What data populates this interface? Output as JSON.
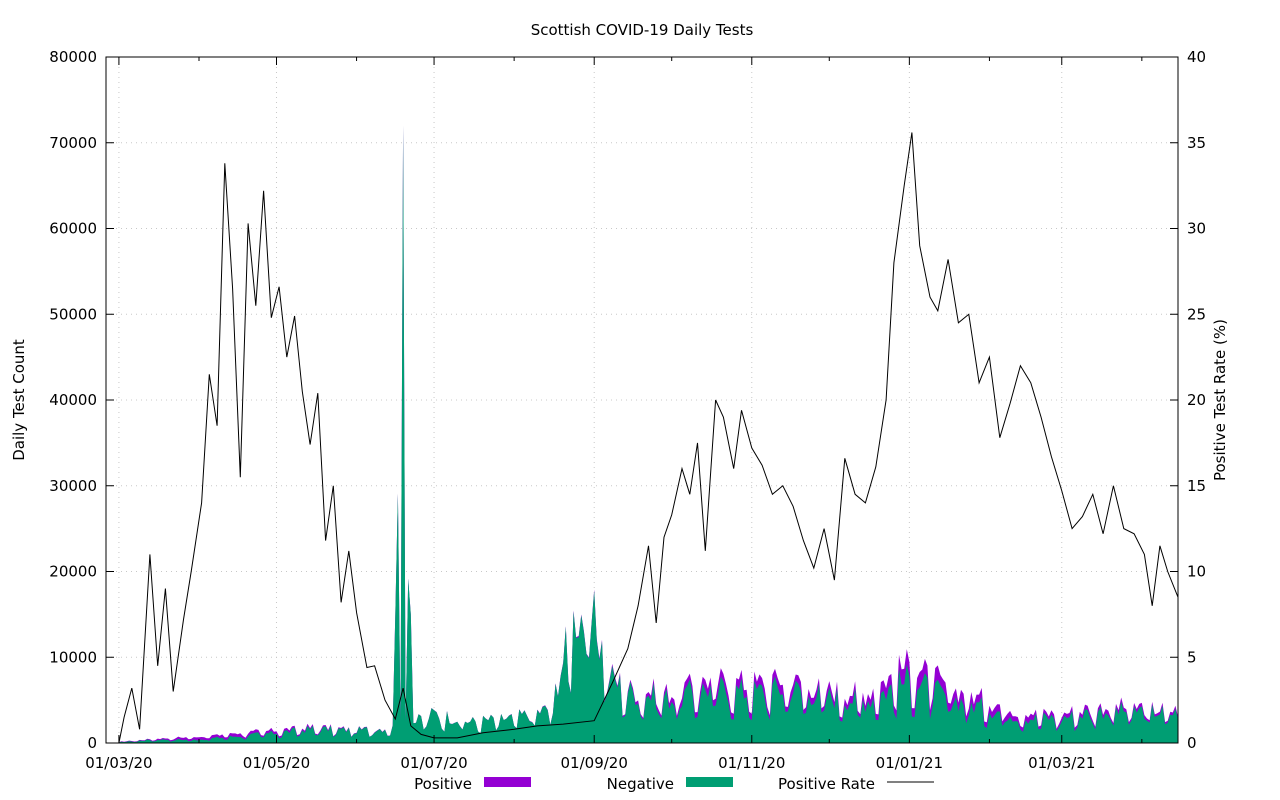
{
  "chart_data": {
    "type": "area",
    "title": "Scottish COVID-19 Daily Tests",
    "ylabel": "Daily Test Count",
    "y2label": "Positive Test Rate (%)",
    "xlabel": "",
    "x_start": "2020-02-25",
    "x_end": "2021-04-15",
    "ylim": [
      0,
      80000
    ],
    "y2lim": [
      0,
      40
    ],
    "y_ticks": [
      0,
      10000,
      20000,
      30000,
      40000,
      50000,
      60000,
      70000,
      80000
    ],
    "y2_ticks": [
      0,
      5,
      10,
      15,
      20,
      25,
      30,
      35,
      40
    ],
    "x_ticks": [
      "2020-03-01",
      "2020-05-01",
      "2020-07-01",
      "2020-09-01",
      "2020-11-01",
      "2021-01-01",
      "2021-03-01"
    ],
    "x_tick_labels": [
      "01/03/20",
      "01/05/20",
      "01/07/20",
      "01/09/20",
      "01/11/20",
      "01/01/21",
      "01/03/21"
    ],
    "grid": true,
    "legend_position": "bottom",
    "series": [
      {
        "name": "Positive",
        "axis": "left",
        "style": "stacked-area",
        "color": "#9400d3",
        "points": [
          [
            "2020-03-01",
            30
          ],
          [
            "2020-03-15",
            120
          ],
          [
            "2020-04-01",
            350
          ],
          [
            "2020-04-15",
            380
          ],
          [
            "2020-05-01",
            290
          ],
          [
            "2020-05-15",
            180
          ],
          [
            "2020-06-01",
            60
          ],
          [
            "2020-06-15",
            25
          ],
          [
            "2020-07-01",
            15
          ],
          [
            "2020-07-15",
            10
          ],
          [
            "2020-08-01",
            20
          ],
          [
            "2020-08-15",
            60
          ],
          [
            "2020-09-01",
            140
          ],
          [
            "2020-09-15",
            300
          ],
          [
            "2020-10-01",
            700
          ],
          [
            "2020-10-15",
            1000
          ],
          [
            "2020-11-01",
            1000
          ],
          [
            "2020-11-15",
            950
          ],
          [
            "2020-12-01",
            700
          ],
          [
            "2020-12-15",
            800
          ],
          [
            "2021-01-01",
            1700
          ],
          [
            "2021-01-15",
            1400
          ],
          [
            "2021-02-01",
            800
          ],
          [
            "2021-02-15",
            600
          ],
          [
            "2021-03-01",
            450
          ],
          [
            "2021-03-15",
            500
          ],
          [
            "2021-04-01",
            400
          ],
          [
            "2021-04-15",
            300
          ]
        ]
      },
      {
        "name": "Negative",
        "axis": "left",
        "style": "stacked-area",
        "color": "#009e73",
        "points": [
          [
            "2020-03-01",
            100
          ],
          [
            "2020-03-15",
            400
          ],
          [
            "2020-04-01",
            400
          ],
          [
            "2020-04-15",
            800
          ],
          [
            "2020-05-01",
            1200
          ],
          [
            "2020-05-15",
            1700
          ],
          [
            "2020-06-01",
            1500
          ],
          [
            "2020-06-15",
            1800
          ],
          [
            "2020-06-19",
            72000
          ],
          [
            "2020-06-23",
            2400
          ],
          [
            "2020-07-01",
            3500
          ],
          [
            "2020-07-15",
            2500
          ],
          [
            "2020-08-01",
            3000
          ],
          [
            "2020-08-15",
            4000
          ],
          [
            "2020-08-25",
            15500
          ],
          [
            "2020-09-01",
            14000
          ],
          [
            "2020-09-08",
            7500
          ],
          [
            "2020-09-15",
            6000
          ],
          [
            "2020-10-01",
            5200
          ],
          [
            "2020-10-15",
            6500
          ],
          [
            "2020-11-01",
            6000
          ],
          [
            "2020-11-15",
            6500
          ],
          [
            "2020-12-01",
            5500
          ],
          [
            "2020-12-15",
            5000
          ],
          [
            "2021-01-01",
            7500
          ],
          [
            "2021-01-15",
            5500
          ],
          [
            "2021-02-01",
            4000
          ],
          [
            "2021-02-15",
            3000
          ],
          [
            "2021-03-01",
            3000
          ],
          [
            "2021-03-15",
            3800
          ],
          [
            "2021-04-01",
            3800
          ],
          [
            "2021-04-15",
            3500
          ]
        ]
      },
      {
        "name": "Positive Rate",
        "axis": "right",
        "style": "line",
        "color": "#000000",
        "points": [
          [
            "2020-03-01",
            0
          ],
          [
            "2020-03-03",
            1.5
          ],
          [
            "2020-03-06",
            3.2
          ],
          [
            "2020-03-09",
            0.8
          ],
          [
            "2020-03-13",
            11
          ],
          [
            "2020-03-16",
            4.5
          ],
          [
            "2020-03-19",
            9
          ],
          [
            "2020-03-22",
            3
          ],
          [
            "2020-03-26",
            7.2
          ],
          [
            "2020-03-29",
            10
          ],
          [
            "2020-04-02",
            14
          ],
          [
            "2020-04-05",
            21.5
          ],
          [
            "2020-04-08",
            18.5
          ],
          [
            "2020-04-11",
            33.8
          ],
          [
            "2020-04-14",
            26.5
          ],
          [
            "2020-04-17",
            15.5
          ],
          [
            "2020-04-20",
            30.3
          ],
          [
            "2020-04-23",
            25.5
          ],
          [
            "2020-04-26",
            32.2
          ],
          [
            "2020-04-29",
            24.8
          ],
          [
            "2020-05-02",
            26.6
          ],
          [
            "2020-05-05",
            22.5
          ],
          [
            "2020-05-08",
            24.9
          ],
          [
            "2020-05-11",
            20.5
          ],
          [
            "2020-05-14",
            17.4
          ],
          [
            "2020-05-17",
            20.4
          ],
          [
            "2020-05-20",
            11.8
          ],
          [
            "2020-05-23",
            15
          ],
          [
            "2020-05-26",
            8.2
          ],
          [
            "2020-05-29",
            11.2
          ],
          [
            "2020-06-01",
            7.6
          ],
          [
            "2020-06-05",
            4.4
          ],
          [
            "2020-06-08",
            4.5
          ],
          [
            "2020-06-12",
            2.5
          ],
          [
            "2020-06-16",
            1.4
          ],
          [
            "2020-06-19",
            3.2
          ],
          [
            "2020-06-22",
            1
          ],
          [
            "2020-06-26",
            0.5
          ],
          [
            "2020-07-01",
            0.3
          ],
          [
            "2020-07-10",
            0.3
          ],
          [
            "2020-07-20",
            0.6
          ],
          [
            "2020-08-01",
            0.8
          ],
          [
            "2020-08-10",
            1
          ],
          [
            "2020-08-20",
            1.1
          ],
          [
            "2020-09-01",
            1.3
          ],
          [
            "2020-09-08",
            3.5
          ],
          [
            "2020-09-14",
            5.5
          ],
          [
            "2020-09-18",
            8
          ],
          [
            "2020-09-22",
            11.5
          ],
          [
            "2020-09-25",
            7
          ],
          [
            "2020-09-28",
            12
          ],
          [
            "2020-10-01",
            13.3
          ],
          [
            "2020-10-05",
            16
          ],
          [
            "2020-10-08",
            14.5
          ],
          [
            "2020-10-11",
            17.5
          ],
          [
            "2020-10-14",
            11.2
          ],
          [
            "2020-10-18",
            20
          ],
          [
            "2020-10-21",
            19
          ],
          [
            "2020-10-25",
            16
          ],
          [
            "2020-10-28",
            19.4
          ],
          [
            "2020-11-01",
            17.2
          ],
          [
            "2020-11-05",
            16.2
          ],
          [
            "2020-11-09",
            14.5
          ],
          [
            "2020-11-13",
            15
          ],
          [
            "2020-11-17",
            13.8
          ],
          [
            "2020-11-21",
            11.8
          ],
          [
            "2020-11-25",
            10.2
          ],
          [
            "2020-11-29",
            12.5
          ],
          [
            "2020-12-03",
            9.5
          ],
          [
            "2020-12-07",
            16.6
          ],
          [
            "2020-12-11",
            14.5
          ],
          [
            "2020-12-15",
            14
          ],
          [
            "2020-12-19",
            16.1
          ],
          [
            "2020-12-23",
            20
          ],
          [
            "2020-12-26",
            28
          ],
          [
            "2020-12-30",
            32.5
          ],
          [
            "2021-01-02",
            35.6
          ],
          [
            "2021-01-05",
            29
          ],
          [
            "2021-01-09",
            26
          ],
          [
            "2021-01-12",
            25.2
          ],
          [
            "2021-01-16",
            28.2
          ],
          [
            "2021-01-20",
            24.5
          ],
          [
            "2021-01-24",
            25
          ],
          [
            "2021-01-28",
            21
          ],
          [
            "2021-02-01",
            22.5
          ],
          [
            "2021-02-05",
            17.8
          ],
          [
            "2021-02-09",
            19.8
          ],
          [
            "2021-02-13",
            22
          ],
          [
            "2021-02-17",
            21
          ],
          [
            "2021-02-21",
            19
          ],
          [
            "2021-02-25",
            16.7
          ],
          [
            "2021-03-01",
            14.7
          ],
          [
            "2021-03-05",
            12.5
          ],
          [
            "2021-03-09",
            13.2
          ],
          [
            "2021-03-13",
            14.5
          ],
          [
            "2021-03-17",
            12.2
          ],
          [
            "2021-03-21",
            15
          ],
          [
            "2021-03-25",
            12.5
          ],
          [
            "2021-03-29",
            12.2
          ],
          [
            "2021-04-02",
            11
          ],
          [
            "2021-04-05",
            8
          ],
          [
            "2021-04-08",
            11.5
          ],
          [
            "2021-04-11",
            10
          ],
          [
            "2021-04-15",
            8.5
          ]
        ]
      }
    ]
  }
}
